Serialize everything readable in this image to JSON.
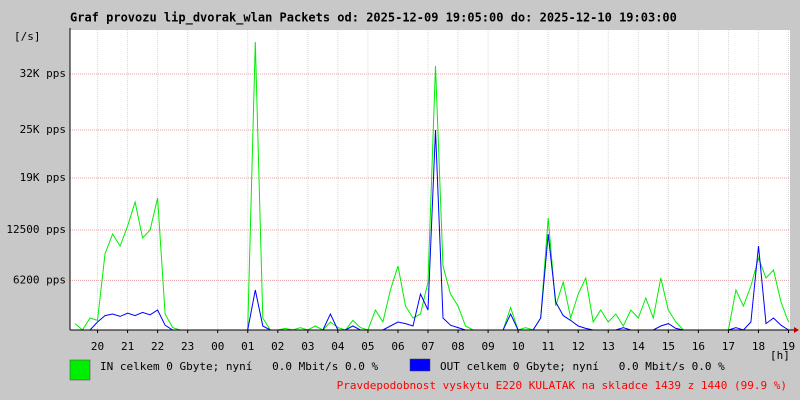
{
  "chart_data": {
    "type": "line",
    "title": "Graf provozu lip_dvorak_wlan Packets od: 2025-12-09 19:05:00 do: 2025-12-10 19:03:00",
    "y_label": "[/s]",
    "x_label": "[h]",
    "note": "Pravdepodobnost vyskytu E220 KULATAK na skladce 1439 z 1440 (99.9 %)",
    "x": [
      19.25,
      19.5,
      19.75,
      20,
      20.25,
      20.5,
      20.75,
      21,
      21.25,
      21.5,
      21.75,
      22,
      22.25,
      22.5,
      22.75,
      23,
      23.25,
      23.5,
      23.75,
      24,
      24.25,
      24.5,
      24.75,
      25,
      25.25,
      25.5,
      25.75,
      26,
      26.25,
      26.5,
      26.75,
      27,
      27.25,
      27.5,
      27.75,
      28,
      28.25,
      28.5,
      28.75,
      29,
      29.25,
      29.5,
      29.75,
      30,
      30.25,
      30.5,
      30.75,
      31,
      31.25,
      31.5,
      31.75,
      32,
      32.25,
      32.5,
      32.75,
      33,
      33.25,
      33.5,
      33.75,
      34,
      34.25,
      34.5,
      34.75,
      35,
      35.25,
      35.5,
      35.75,
      36,
      36.25,
      36.5,
      36.75,
      37,
      37.25,
      37.5,
      37.75,
      38,
      38.25,
      38.5,
      38.75,
      39,
      39.25,
      39.5,
      39.75,
      40,
      40.25,
      40.5,
      40.75,
      41,
      41.25,
      41.5,
      41.75,
      42,
      42.25,
      42.5,
      42.75,
      43
    ],
    "series": [
      {
        "name": "IN celkem 0 Gbyte; nyní   0.0 Mbit/s 0.0 %",
        "color": "#00ee00",
        "values": [
          800,
          0,
          1500,
          1200,
          9500,
          12000,
          10500,
          13000,
          16000,
          11500,
          12500,
          16500,
          2000,
          300,
          0,
          0,
          0,
          0,
          0,
          0,
          0,
          0,
          0,
          0,
          36000,
          1500,
          0,
          0,
          200,
          0,
          300,
          0,
          500,
          0,
          1000,
          300,
          0,
          1200,
          300,
          0,
          2500,
          1000,
          5000,
          8000,
          3000,
          1500,
          2000,
          6000,
          33000,
          8000,
          4500,
          3000,
          500,
          0,
          0,
          0,
          0,
          0,
          2800,
          0,
          300,
          0,
          1500,
          14000,
          3000,
          6000,
          1500,
          4500,
          6500,
          1000,
          2500,
          1000,
          2000,
          500,
          2500,
          1500,
          4000,
          1500,
          6500,
          2500,
          1000,
          0,
          0,
          0,
          0,
          0,
          0,
          0,
          5000,
          3000,
          5500,
          9000,
          6500,
          7500,
          3500,
          1000
        ]
      },
      {
        "name": "OUT celkem 0 Gbyte; nyní   0.0 Mbit/s 0.0 %",
        "color": "#0000ff",
        "values": [
          0,
          0,
          0,
          1000,
          1800,
          2000,
          1700,
          2100,
          1800,
          2200,
          1900,
          2500,
          600,
          0,
          0,
          0,
          0,
          0,
          0,
          0,
          0,
          0,
          0,
          0,
          5000,
          500,
          0,
          0,
          0,
          0,
          0,
          0,
          0,
          0,
          2000,
          0,
          0,
          500,
          0,
          0,
          0,
          0,
          500,
          1000,
          800,
          500,
          4500,
          2500,
          25000,
          1500,
          600,
          300,
          0,
          0,
          0,
          0,
          0,
          0,
          2000,
          0,
          0,
          0,
          1500,
          12000,
          3500,
          1800,
          1200,
          500,
          200,
          0,
          0,
          0,
          0,
          300,
          0,
          0,
          0,
          0,
          500,
          800,
          200,
          0,
          0,
          0,
          0,
          0,
          0,
          0,
          300,
          0,
          1000,
          10500,
          800,
          1500,
          600,
          0
        ]
      }
    ],
    "xlim": [
      19.0833,
      43.05
    ],
    "xticks": [
      {
        "value": 20,
        "label": "20"
      },
      {
        "value": 21,
        "label": "21"
      },
      {
        "value": 22,
        "label": "22"
      },
      {
        "value": 23,
        "label": "23"
      },
      {
        "value": 24,
        "label": "00"
      },
      {
        "value": 25,
        "label": "01"
      },
      {
        "value": 26,
        "label": "02"
      },
      {
        "value": 27,
        "label": "03"
      },
      {
        "value": 28,
        "label": "04"
      },
      {
        "value": 29,
        "label": "05"
      },
      {
        "value": 30,
        "label": "06"
      },
      {
        "value": 31,
        "label": "07"
      },
      {
        "value": 32,
        "label": "08"
      },
      {
        "value": 33,
        "label": "09"
      },
      {
        "value": 34,
        "label": "10"
      },
      {
        "value": 35,
        "label": "11"
      },
      {
        "value": 36,
        "label": "12"
      },
      {
        "value": 37,
        "label": "13"
      },
      {
        "value": 38,
        "label": "14"
      },
      {
        "value": 39,
        "label": "15"
      },
      {
        "value": 40,
        "label": "16"
      },
      {
        "value": 41,
        "label": "17"
      },
      {
        "value": 42,
        "label": "18"
      },
      {
        "value": 43,
        "label": "19"
      }
    ],
    "ylim": [
      0,
      37500
    ],
    "yticks": [
      {
        "value": 6200,
        "label": "6200 pps"
      },
      {
        "value": 12500,
        "label": "12500 pps"
      },
      {
        "value": 19000,
        "label": "19K pps"
      },
      {
        "value": 25000,
        "label": "25K pps"
      },
      {
        "value": 32000,
        "label": "32K pps"
      }
    ],
    "grid": true
  }
}
